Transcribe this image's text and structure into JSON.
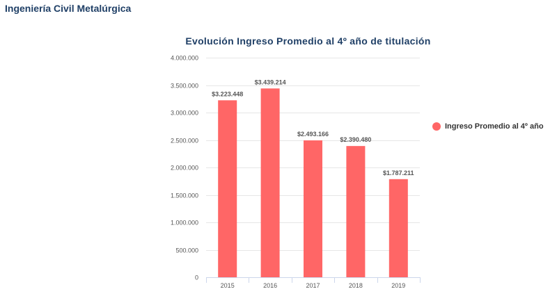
{
  "page": {
    "heading": "Ingeniería Civil Metalúrgica"
  },
  "chart_data": {
    "type": "bar",
    "title": "Evolución Ingreso Promedio al 4º año de titulación",
    "categories": [
      "2015",
      "2016",
      "2017",
      "2018",
      "2019"
    ],
    "series": [
      {
        "name": "Ingreso Promedio al 4º año",
        "values": [
          3223448,
          3439214,
          2493166,
          2390480,
          1787211
        ],
        "data_labels": [
          "$3.223.448",
          "$3.439.214",
          "$2.493.166",
          "$2.390.480",
          "$1.787.211"
        ],
        "color": "#ff6666"
      }
    ],
    "ylim": [
      0,
      4000000
    ],
    "yticks": [
      0,
      500000,
      1000000,
      1500000,
      2000000,
      2500000,
      3000000,
      3500000,
      4000000
    ],
    "ytick_labels": [
      "0",
      "500.000",
      "1.000.000",
      "1.500.000",
      "2.000.000",
      "2.500.000",
      "3.000.000",
      "3.500.000",
      "4.000.000"
    ],
    "xlabel": "",
    "ylabel": "",
    "grid": true,
    "legend_position": "right"
  },
  "colors": {
    "title": "#1f3f66",
    "bar": "#ff6666",
    "grid": "#e6e6e6"
  }
}
